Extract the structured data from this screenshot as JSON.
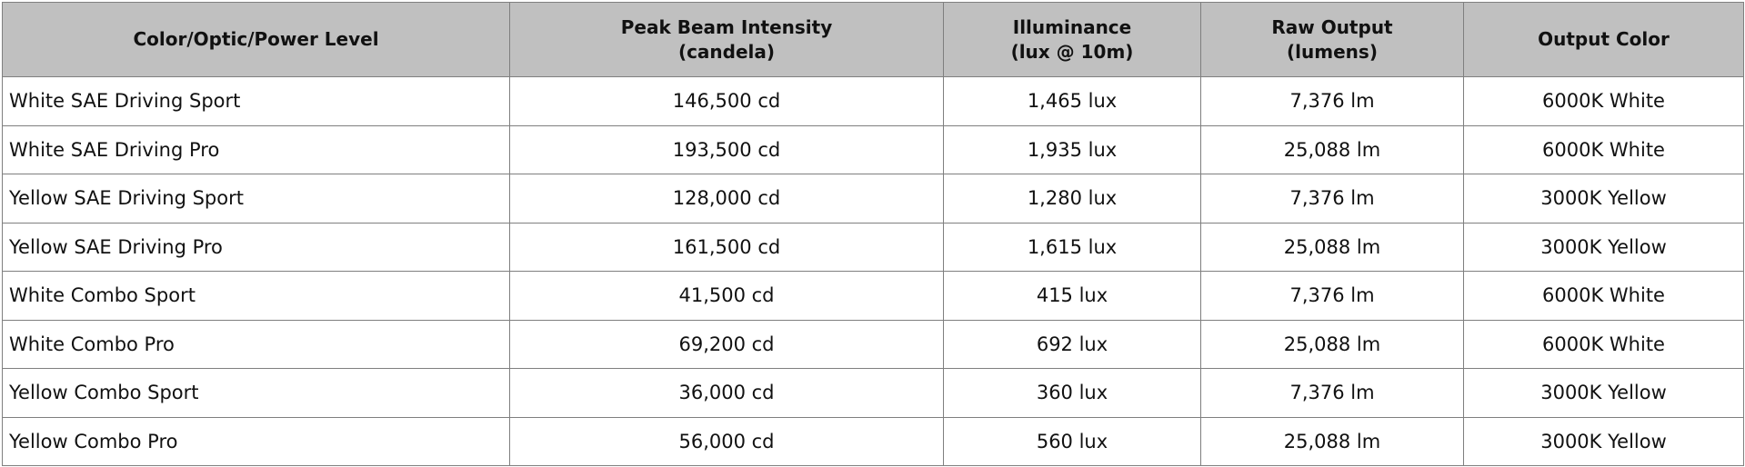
{
  "table": {
    "headers": [
      {
        "line1": "Color/Optic/Power Level",
        "line2": ""
      },
      {
        "line1": "Peak Beam Intensity",
        "line2": "(candela)"
      },
      {
        "line1": "Illuminance",
        "line2": "(lux @ 10m)"
      },
      {
        "line1": "Raw Output",
        "line2": "(lumens)"
      },
      {
        "line1": "Output Color",
        "line2": ""
      }
    ],
    "rows": [
      [
        "White SAE Driving Sport",
        "146,500 cd",
        "1,465 lux",
        "7,376 lm",
        "6000K White"
      ],
      [
        "White SAE Driving Pro",
        "193,500 cd",
        "1,935 lux",
        "25,088 lm",
        "6000K White"
      ],
      [
        "Yellow SAE Driving Sport",
        "128,000 cd",
        "1,280 lux",
        "7,376 lm",
        "3000K Yellow"
      ],
      [
        "Yellow SAE Driving Pro",
        "161,500 cd",
        "1,615 lux",
        "25,088 lm",
        "3000K Yellow"
      ],
      [
        "White Combo Sport",
        "41,500 cd",
        "415 lux",
        "7,376 lm",
        "6000K White"
      ],
      [
        "White Combo Pro",
        "69,200 cd",
        "692 lux",
        "25,088 lm",
        "6000K White"
      ],
      [
        "Yellow Combo Sport",
        "36,000 cd",
        "360 lux",
        "7,376 lm",
        "3000K Yellow"
      ],
      [
        "Yellow Combo Pro",
        "56,000 cd",
        "560 lux",
        "25,088 lm",
        "3000K Yellow"
      ]
    ]
  },
  "colors": {
    "header_background": "#c0c0c0",
    "border": "#7f7f7f",
    "text": "#111111"
  }
}
